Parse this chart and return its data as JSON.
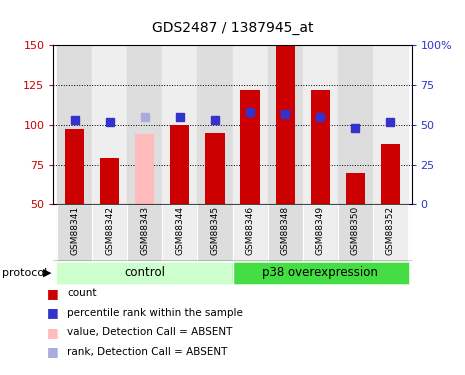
{
  "title": "GDS2487 / 1387945_at",
  "samples": [
    "GSM88341",
    "GSM88342",
    "GSM88343",
    "GSM88344",
    "GSM88345",
    "GSM88346",
    "GSM88348",
    "GSM88349",
    "GSM88350",
    "GSM88352"
  ],
  "bar_values": [
    97,
    79,
    94,
    100,
    95,
    122,
    150,
    122,
    70,
    88
  ],
  "bar_colors": [
    "#cc0000",
    "#cc0000",
    "#ffbbbb",
    "#cc0000",
    "#cc0000",
    "#cc0000",
    "#cc0000",
    "#cc0000",
    "#cc0000",
    "#cc0000"
  ],
  "rank_values": [
    53,
    52,
    55,
    55,
    53,
    58,
    57,
    55,
    48,
    52
  ],
  "rank_colors": [
    "#3333cc",
    "#3333cc",
    "#aaaadd",
    "#3333cc",
    "#3333cc",
    "#3333cc",
    "#3333cc",
    "#3333cc",
    "#3333cc",
    "#3333cc"
  ],
  "ylim_left": [
    50,
    150
  ],
  "ylim_right": [
    0,
    100
  ],
  "yticks_left": [
    50,
    75,
    100,
    125,
    150
  ],
  "yticks_right": [
    0,
    25,
    50,
    75,
    100
  ],
  "ytick_labels_left": [
    "50",
    "75",
    "100",
    "125",
    "150"
  ],
  "ytick_labels_right": [
    "0",
    "25",
    "50",
    "75",
    "100%"
  ],
  "groups": [
    {
      "label": "control",
      "start": 0,
      "end": 5,
      "color": "#ccffcc"
    },
    {
      "label": "p38 overexpression",
      "start": 5,
      "end": 10,
      "color": "#44dd44"
    }
  ],
  "protocol_label": "protocol",
  "legend_items": [
    {
      "label": "count",
      "color": "#cc0000"
    },
    {
      "label": "percentile rank within the sample",
      "color": "#3333cc"
    },
    {
      "label": "value, Detection Call = ABSENT",
      "color": "#ffbbbb"
    },
    {
      "label": "rank, Detection Call = ABSENT",
      "color": "#aaaadd"
    }
  ],
  "bar_width": 0.55,
  "marker_size": 6,
  "left_axis_color": "#cc0000",
  "right_axis_color": "#3333cc",
  "col_bg_odd": "#dddddd",
  "col_bg_even": "#eeeeee"
}
